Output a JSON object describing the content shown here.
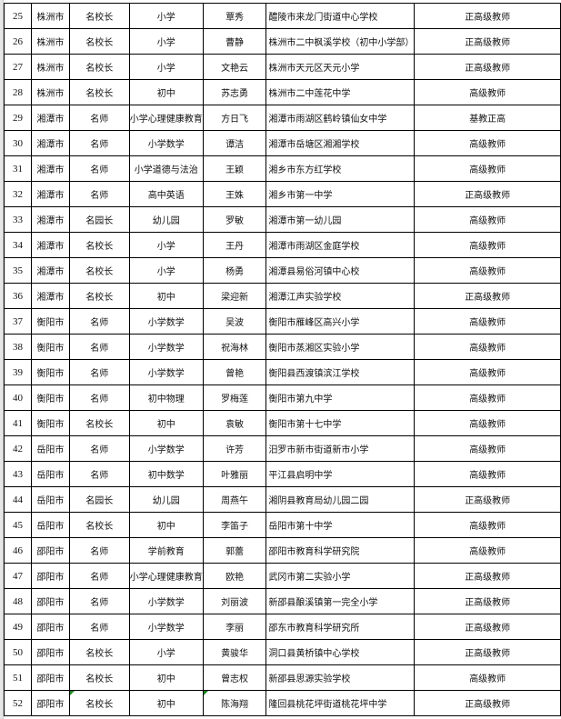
{
  "rows": [
    [
      "25",
      "株洲市",
      "名校长",
      "小学",
      "覃秀",
      "醴陵市来龙门街道中心学校",
      "正高级教师"
    ],
    [
      "26",
      "株洲市",
      "名校长",
      "小学",
      "曹静",
      "株洲市二中枫溪学校（初中小学部）",
      "正高级教师"
    ],
    [
      "27",
      "株洲市",
      "名校长",
      "小学",
      "文艳云",
      "株洲市天元区天元小学",
      "正高级教师"
    ],
    [
      "28",
      "株洲市",
      "名校长",
      "初中",
      "苏志勇",
      "株洲市二中莲花中学",
      "高级教师"
    ],
    [
      "29",
      "湘潭市",
      "名师",
      "小学心理健康教育",
      "方日飞",
      "湘潭市雨湖区鹤岭镇仙女中学",
      "基教正高"
    ],
    [
      "30",
      "湘潭市",
      "名师",
      "小学数学",
      "谭洁",
      "湘潭市岳塘区湘湘学校",
      "高级教师"
    ],
    [
      "31",
      "湘潭市",
      "名师",
      "小学道德与法治",
      "王颖",
      "湘乡市东方红学校",
      "高级教师"
    ],
    [
      "32",
      "湘潭市",
      "名师",
      "高中英语",
      "王姝",
      "湘乡市第一中学",
      "正高级教师"
    ],
    [
      "33",
      "湘潭市",
      "名园长",
      "幼儿园",
      "罗敏",
      "湘潭市第一幼儿园",
      "高级教师"
    ],
    [
      "34",
      "湘潭市",
      "名校长",
      "小学",
      "王丹",
      "湘潭市雨湖区金庭学校",
      "高级教师"
    ],
    [
      "35",
      "湘潭市",
      "名校长",
      "小学",
      "杨勇",
      "湘潭县易俗河镇中心校",
      "高级教师"
    ],
    [
      "36",
      "湘潭市",
      "名校长",
      "初中",
      "梁迎新",
      "湘潭江声实验学校",
      "正高级教师"
    ],
    [
      "37",
      "衡阳市",
      "名师",
      "小学数学",
      "吴波",
      "衡阳市雁峰区高兴小学",
      "高级教师"
    ],
    [
      "38",
      "衡阳市",
      "名师",
      "小学数学",
      "祝海林",
      "衡阳市蒸湘区实验小学",
      "高级教师"
    ],
    [
      "39",
      "衡阳市",
      "名师",
      "小学数学",
      "曾艳",
      "衡阳县西渡镇滨江学校",
      "高级教师"
    ],
    [
      "40",
      "衡阳市",
      "名师",
      "初中物理",
      "罗梅莲",
      "衡阳市第九中学",
      "高级教师"
    ],
    [
      "41",
      "衡阳市",
      "名校长",
      "初中",
      "袁敏",
      "衡阳市第十七中学",
      "高级教师"
    ],
    [
      "42",
      "岳阳市",
      "名师",
      "小学数学",
      "许芳",
      "汨罗市新市街道新市小学",
      "高级教师"
    ],
    [
      "43",
      "岳阳市",
      "名师",
      "初中数学",
      "叶雅丽",
      "平江县启明中学",
      "高级教师"
    ],
    [
      "44",
      "岳阳市",
      "名园长",
      "幼儿园",
      "周燕午",
      "湘阴县教育局幼儿园二园",
      "正高级教师"
    ],
    [
      "45",
      "岳阳市",
      "名校长",
      "初中",
      "李笛子",
      "岳阳市第十中学",
      "高级教师"
    ],
    [
      "46",
      "邵阳市",
      "名师",
      "学前教育",
      "郭蕾",
      "邵阳市教育科学研究院",
      "高级教师"
    ],
    [
      "47",
      "邵阳市",
      "名师",
      "小学心理健康教育",
      "欧艳",
      "武冈市第二实验小学",
      "正高级教师"
    ],
    [
      "48",
      "邵阳市",
      "名师",
      "小学数学",
      "刘丽波",
      "新邵县酿溪镇第一完全小学",
      "正高级教师"
    ],
    [
      "49",
      "邵阳市",
      "名师",
      "小学数学",
      "李丽",
      "邵东市教育科学研究所",
      "正高级教师"
    ],
    [
      "50",
      "邵阳市",
      "名校长",
      "小学",
      "黄骏华",
      "洞口县黄桥镇中心学校",
      "正高级教师"
    ],
    [
      "51",
      "邵阳市",
      "名校长",
      "初中",
      "曾志权",
      "新邵县思源实验学校",
      "高级教师"
    ],
    [
      "52",
      "邵阳市",
      "名校长",
      "初中",
      "陈海翔",
      "隆回县桃花坪街道桃花坪中学",
      "正高级教师"
    ]
  ],
  "colors": {
    "comment_flag": "#1a8a1a"
  }
}
